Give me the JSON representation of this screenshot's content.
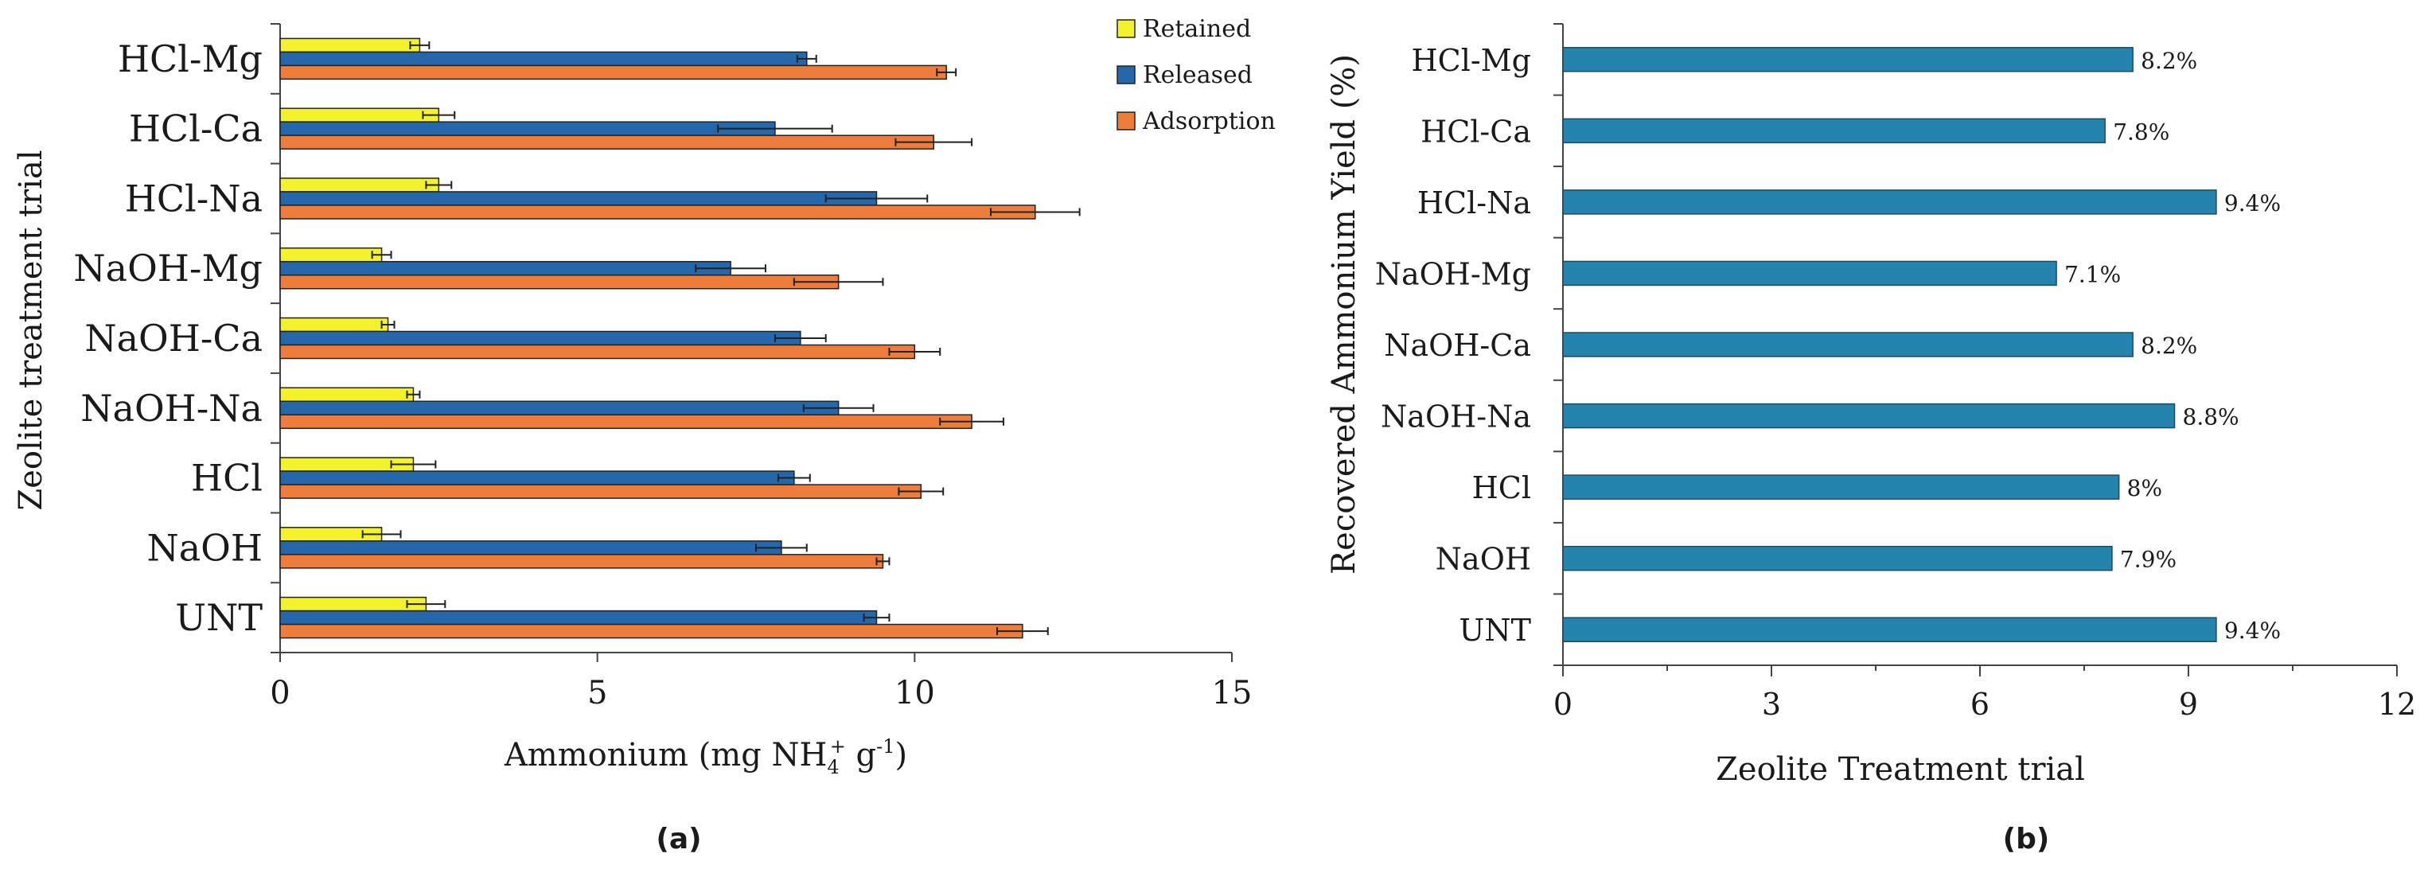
{
  "chart_data": [
    {
      "type": "bar",
      "orientation": "horizontal",
      "panel_label": "(a)",
      "categories": [
        "HCl-Mg",
        "HCl-Ca",
        "HCl-Na",
        "NaOH-Mg",
        "NaOH-Ca",
        "NaOH-Na",
        "HCl",
        "NaOH",
        "UNT"
      ],
      "series": [
        {
          "name": "Retained",
          "color": "#f4f22a",
          "values": [
            2.2,
            2.5,
            2.5,
            1.6,
            1.7,
            2.1,
            2.1,
            1.6,
            2.3
          ],
          "errors": [
            0.15,
            0.25,
            0.2,
            0.15,
            0.1,
            0.1,
            0.35,
            0.3,
            0.3
          ]
        },
        {
          "name": "Released",
          "color": "#2468ab",
          "values": [
            8.3,
            7.8,
            9.4,
            7.1,
            8.2,
            8.8,
            8.1,
            7.9,
            9.4
          ],
          "errors": [
            0.15,
            0.9,
            0.8,
            0.55,
            0.4,
            0.55,
            0.25,
            0.4,
            0.2
          ]
        },
        {
          "name": "Adsorption",
          "color": "#ee7d3b",
          "values": [
            10.5,
            10.3,
            11.9,
            8.8,
            10.0,
            10.9,
            10.1,
            9.5,
            11.7
          ],
          "errors": [
            0.15,
            0.6,
            0.7,
            0.7,
            0.4,
            0.5,
            0.35,
            0.1,
            0.4
          ]
        }
      ],
      "xlabel": "Ammonium (mg NH",
      "xlabel_sub": "4",
      "xlabel_sup": "+",
      "xlabel_rest": " g",
      "xlabel_exp": "-1",
      "xlabel_close": ")",
      "ylabel": "Zeolite treatment trial",
      "xlim": [
        0,
        15
      ],
      "xticks": [
        0,
        5,
        10,
        15
      ],
      "legend_position": "top-right"
    },
    {
      "type": "bar",
      "orientation": "horizontal",
      "panel_label": "(b)",
      "categories": [
        "HCl-Mg",
        "HCl-Ca",
        "HCl-Na",
        "NaOH-Mg",
        "NaOH-Ca",
        "NaOH-Na",
        "HCl",
        "NaOH",
        "UNT"
      ],
      "values": [
        8.2,
        7.8,
        9.4,
        7.1,
        8.2,
        8.8,
        8.0,
        7.9,
        9.4
      ],
      "data_labels": [
        "8.2%",
        "7.8%",
        "9.4%",
        "7.1%",
        "8.2%",
        "8.8%",
        "8%",
        "7.9%",
        "9.4%"
      ],
      "color": "#2584ad",
      "xlabel": "Zeolite Treatment trial",
      "ylabel": "Recovered Ammonium Yield (%)",
      "xlim": [
        0,
        12
      ],
      "xticks": [
        0,
        3,
        6,
        9,
        12
      ]
    }
  ]
}
